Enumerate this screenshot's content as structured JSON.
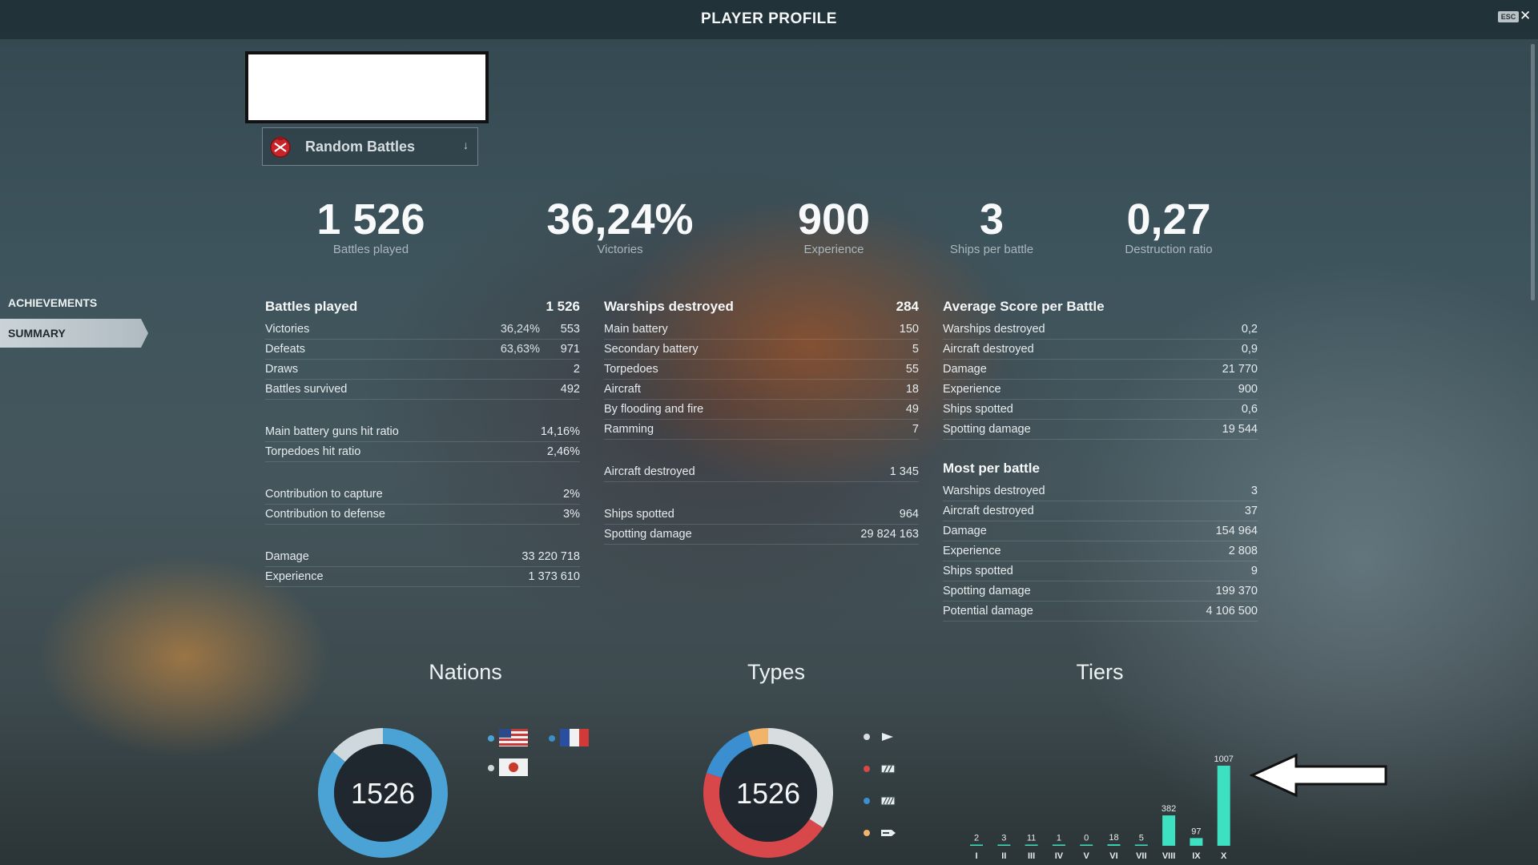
{
  "header": {
    "title": "PLAYER PROFILE",
    "esc": "ESC",
    "close": "✕"
  },
  "mode_select": {
    "label": "Random Battles",
    "arrow": "↓"
  },
  "top_stats": [
    {
      "value": "1 526",
      "label": "Battles played"
    },
    {
      "value": "36,24%",
      "label": "Victories"
    },
    {
      "value": "900",
      "label": "Experience"
    },
    {
      "value": "3",
      "label": "Ships per battle"
    },
    {
      "value": "0,27",
      "label": "Destruction ratio"
    }
  ],
  "nav": [
    {
      "label": "ACHIEVEMENTS",
      "active": false
    },
    {
      "label": "SUMMARY",
      "active": true
    }
  ],
  "col1": {
    "header": {
      "label": "Battles played",
      "value": "1 526"
    },
    "group1": [
      {
        "label": "Victories",
        "pct": "36,24%",
        "value": "553"
      },
      {
        "label": "Defeats",
        "pct": "63,63%",
        "value": "971"
      },
      {
        "label": "Draws",
        "pct": "",
        "value": "2"
      },
      {
        "label": "Battles survived",
        "pct": "",
        "value": "492"
      }
    ],
    "group2": [
      {
        "label": "Main battery guns hit ratio",
        "value": "14,16%"
      },
      {
        "label": "Torpedoes hit ratio",
        "value": "2,46%"
      }
    ],
    "group3": [
      {
        "label": "Contribution to capture",
        "value": "2%"
      },
      {
        "label": "Contribution to defense",
        "value": "3%"
      }
    ],
    "group4": [
      {
        "label": "Damage",
        "value": "33 220 718"
      },
      {
        "label": "Experience",
        "value": "1 373 610"
      }
    ]
  },
  "col2": {
    "header": {
      "label": "Warships destroyed",
      "value": "284"
    },
    "group1": [
      {
        "label": "Main battery",
        "value": "150"
      },
      {
        "label": "Secondary battery",
        "value": "5"
      },
      {
        "label": "Torpedoes",
        "value": "55"
      },
      {
        "label": "Aircraft",
        "value": "18"
      },
      {
        "label": "By flooding and fire",
        "value": "49"
      },
      {
        "label": "Ramming",
        "value": "7"
      }
    ],
    "group2": [
      {
        "label": "Aircraft destroyed",
        "value": "1 345"
      }
    ],
    "group3": [
      {
        "label": "Ships spotted",
        "value": "964"
      },
      {
        "label": "Spotting damage",
        "value": "29 824 163"
      }
    ]
  },
  "col3": {
    "header1": "Average Score per Battle",
    "avg": [
      {
        "label": "Warships destroyed",
        "value": "0,2"
      },
      {
        "label": "Aircraft destroyed",
        "value": "0,9"
      },
      {
        "label": "Damage",
        "value": "21 770"
      },
      {
        "label": "Experience",
        "value": "900"
      },
      {
        "label": "Ships spotted",
        "value": "0,6"
      },
      {
        "label": "Spotting damage",
        "value": "19 544"
      }
    ],
    "header2": "Most per battle",
    "most": [
      {
        "label": "Warships destroyed",
        "value": "3"
      },
      {
        "label": "Aircraft destroyed",
        "value": "37"
      },
      {
        "label": "Damage",
        "value": "154 964"
      },
      {
        "label": "Experience",
        "value": "2 808"
      },
      {
        "label": "Ships spotted",
        "value": "9"
      },
      {
        "label": "Spotting damage",
        "value": "199 370"
      },
      {
        "label": "Potential damage",
        "value": "4 106 500"
      }
    ]
  },
  "sections": {
    "nations": "Nations",
    "types": "Types",
    "tiers": "Tiers"
  },
  "nations_chart": {
    "total": "1526",
    "segments": [
      {
        "name": "usa",
        "color": "#4aa3d4",
        "fraction": 0.86
      },
      {
        "name": "france",
        "color": "#3a8fc8",
        "fraction": 0.0
      },
      {
        "name": "japan",
        "color": "#cfd8dc",
        "fraction": 0.14
      }
    ],
    "legend": [
      {
        "dot": "#4aa3d4",
        "flag": "usa-flag-icon"
      },
      {
        "dot": "#3a8fc8",
        "flag": "france-flag-icon"
      },
      {
        "dot": "#cfd8dc",
        "flag": "japan-flag-icon"
      }
    ]
  },
  "types_chart": {
    "total": "1526",
    "segments": [
      {
        "name": "destroyer",
        "color": "#d8dde0",
        "fraction": 0.34
      },
      {
        "name": "cruiser",
        "color": "#d8474a",
        "fraction": 0.46
      },
      {
        "name": "battleship",
        "color": "#3b8fd0",
        "fraction": 0.15
      },
      {
        "name": "carrier",
        "color": "#f2b36a",
        "fraction": 0.05
      }
    ],
    "legend": [
      {
        "dot": "#d8dde0",
        "icon": "destroyer-icon"
      },
      {
        "dot": "#d8474a",
        "icon": "cruiser-icon"
      },
      {
        "dot": "#3b8fd0",
        "icon": "battleship-icon"
      },
      {
        "dot": "#f2b36a",
        "icon": "aircraft-carrier-icon"
      }
    ]
  },
  "chart_data": {
    "type": "bar",
    "title": "Tiers",
    "categories": [
      "I",
      "II",
      "III",
      "IV",
      "V",
      "VI",
      "VII",
      "VIII",
      "IX",
      "X"
    ],
    "values": [
      2,
      3,
      11,
      1,
      0,
      18,
      5,
      382,
      97,
      1007
    ],
    "color": "#3ee0c2"
  }
}
